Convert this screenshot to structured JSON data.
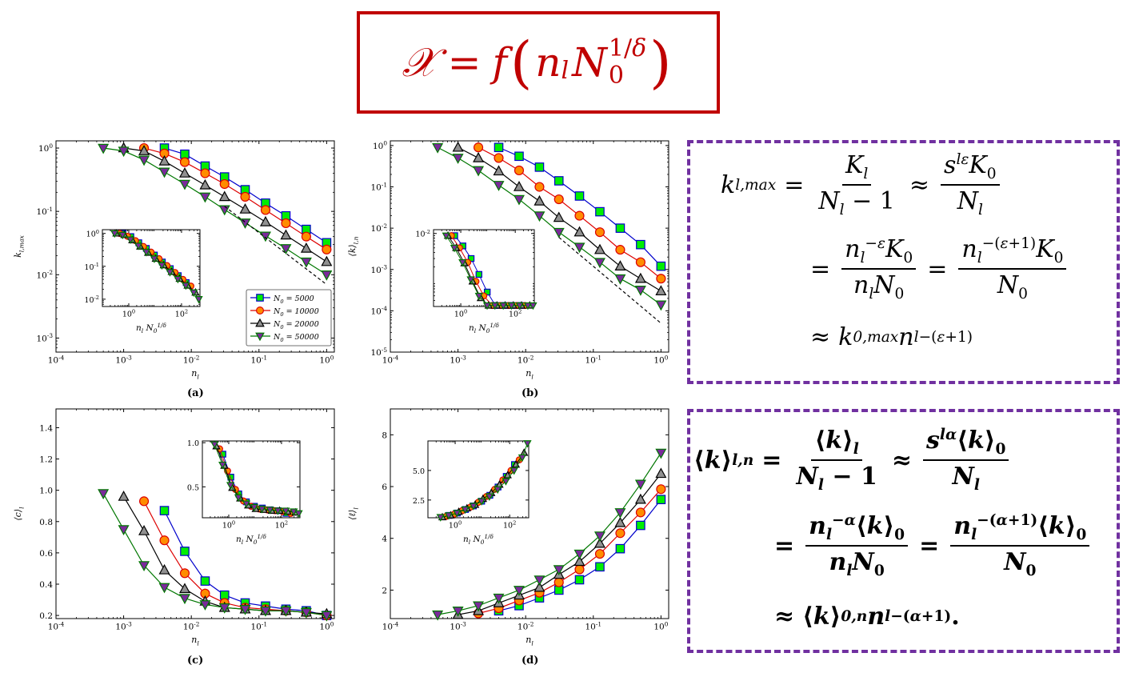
{
  "title_formula": {
    "text": "𝒳 = f (n_l N_0^{1/δ})",
    "color": "#c00000"
  },
  "formula_box1": {
    "lines": [
      "k_{l,max} = K_l / (N_l − 1) ≈ s^{lε} K_0 / N_l",
      "= n_l^{−ε} K_0 / (n_l N_0) = n_l^{−(ε+1)} K_0 / N_0",
      "≈ k_{0,max} n_l^{−(ε+1)}"
    ],
    "border_color": "#7030a0"
  },
  "formula_box2": {
    "lines": [
      "⟨k⟩_{l,n} = ⟨k⟩_l / (N_l − 1) ≈ s^{lα} ⟨k⟩_0 / N_l",
      "= n_l^{−α} ⟨k⟩_0 / (n_l N_0) = n_l^{−(α+1)} ⟨k⟩_0 / N_0",
      "≈ ⟨k⟩_{0,n} n_l^{−(α+1)}."
    ],
    "border_color": "#7030a0"
  },
  "captions": {
    "a": "(a)",
    "b": "(b)",
    "c": "(c)",
    "d": "(d)"
  },
  "legend": [
    {
      "label": "N_0 = 5000",
      "color": "#0000cc",
      "marker": "square",
      "fill": "#00ee00"
    },
    {
      "label": "N_0 = 10000",
      "color": "#dd0000",
      "marker": "circle",
      "fill": "#ff8c00"
    },
    {
      "label": "N_0 = 20000",
      "color": "#000000",
      "marker": "triangle",
      "fill": "#909090"
    },
    {
      "label": "N_0 = 50000",
      "color": "#007700",
      "marker": "tri-down",
      "fill": "#7a2a9a"
    }
  ],
  "chart_data": [
    {
      "id": "a",
      "type": "line",
      "xscale": "log",
      "yscale": "log",
      "xlabel": "n_l",
      "ylabel": "k_{l,max}",
      "xlim": [
        0.0001,
        1.3
      ],
      "ylim": [
        0.0006,
        1.3
      ],
      "xticks": [
        "10^{-4}",
        "10^{-3}",
        "10^{-2}",
        "10^{-1}",
        "10^{0}"
      ],
      "yticks": [
        "10^{-3}",
        "10^{-2}",
        "10^{-1}",
        "10^{0}"
      ],
      "series": [
        {
          "name": "N_0 = 5000",
          "x": [
            0.004,
            0.008,
            0.016,
            0.031,
            0.0625,
            0.125,
            0.25,
            0.5,
            1.0
          ],
          "y": [
            1.0,
            0.8,
            0.52,
            0.35,
            0.22,
            0.135,
            0.085,
            0.052,
            0.032
          ]
        },
        {
          "name": "N_0 = 10000",
          "x": [
            0.002,
            0.004,
            0.008,
            0.016,
            0.031,
            0.0625,
            0.125,
            0.25,
            0.5,
            1.0
          ],
          "y": [
            1.0,
            0.82,
            0.6,
            0.4,
            0.27,
            0.17,
            0.105,
            0.065,
            0.04,
            0.025
          ]
        },
        {
          "name": "N_0 = 20000",
          "x": [
            0.001,
            0.002,
            0.004,
            0.008,
            0.016,
            0.031,
            0.0625,
            0.125,
            0.25,
            0.5,
            1.0
          ],
          "y": [
            1.0,
            0.9,
            0.62,
            0.4,
            0.26,
            0.17,
            0.108,
            0.068,
            0.042,
            0.026,
            0.016
          ]
        },
        {
          "name": "N_0 = 50000",
          "x": [
            0.0005,
            0.001,
            0.002,
            0.004,
            0.008,
            0.016,
            0.031,
            0.0625,
            0.125,
            0.25,
            0.5,
            1.0
          ],
          "y": [
            1.0,
            0.9,
            0.65,
            0.42,
            0.27,
            0.17,
            0.107,
            0.066,
            0.041,
            0.026,
            0.016,
            0.01
          ]
        }
      ],
      "guide_line": {
        "x": [
          0.031,
          1.0
        ],
        "y": [
          0.12,
          0.007
        ]
      },
      "inset": {
        "xlabel": "n_l N_0^{1/δ}",
        "xscale": "log",
        "yscale": "log",
        "xlim": [
          0.1,
          500
        ],
        "ylim": [
          0.006,
          1.3
        ],
        "xticks": [
          "10^{0}",
          "10^{2}"
        ],
        "yticks": [
          "10^{-2}",
          "10^{-1}",
          "10^{0}"
        ]
      }
    },
    {
      "id": "b",
      "type": "line",
      "xscale": "log",
      "yscale": "log",
      "xlabel": "n_l",
      "ylabel": "⟨k⟩_{l,n}",
      "xlim": [
        0.0001,
        1.3
      ],
      "ylim": [
        1e-05,
        1.3
      ],
      "xticks": [
        "10^{-4}",
        "10^{-3}",
        "10^{-2}",
        "10^{-1}",
        "10^{0}"
      ],
      "yticks": [
        "10^{-5}",
        "10^{-4}",
        "10^{-3}",
        "10^{-2}",
        "10^{-1}",
        "10^{0}"
      ],
      "series": [
        {
          "name": "N_0 = 5000",
          "x": [
            0.004,
            0.008,
            0.016,
            0.031,
            0.0625,
            0.125,
            0.25,
            0.5,
            1.0
          ],
          "y": [
            0.9,
            0.55,
            0.3,
            0.14,
            0.06,
            0.025,
            0.01,
            0.004,
            0.0012
          ]
        },
        {
          "name": "N_0 = 10000",
          "x": [
            0.002,
            0.004,
            0.008,
            0.016,
            0.031,
            0.0625,
            0.125,
            0.25,
            0.5,
            1.0
          ],
          "y": [
            0.9,
            0.5,
            0.25,
            0.1,
            0.05,
            0.02,
            0.008,
            0.003,
            0.0015,
            0.0006
          ]
        },
        {
          "name": "N_0 = 20000",
          "x": [
            0.001,
            0.002,
            0.004,
            0.008,
            0.016,
            0.031,
            0.0625,
            0.125,
            0.25,
            0.5,
            1.0
          ],
          "y": [
            0.9,
            0.5,
            0.24,
            0.1,
            0.045,
            0.018,
            0.008,
            0.003,
            0.0012,
            0.0006,
            0.0003
          ]
        },
        {
          "name": "N_0 = 50000",
          "x": [
            0.0005,
            0.001,
            0.002,
            0.004,
            0.008,
            0.016,
            0.031,
            0.0625,
            0.125,
            0.25,
            0.5,
            1.0
          ],
          "y": [
            0.9,
            0.5,
            0.25,
            0.11,
            0.05,
            0.02,
            0.008,
            0.0035,
            0.0015,
            0.0006,
            0.00032,
            0.00014
          ]
        }
      ],
      "guide_line": {
        "x": [
          0.031,
          1.0
        ],
        "y": [
          0.006,
          5e-05
        ]
      },
      "inset": {
        "xlabel": "n_l N_0^{1/δ}",
        "xscale": "log",
        "yscale": "log",
        "xlim": [
          0.1,
          500
        ],
        "ylim": [
          0.0003,
          0.012
        ],
        "xticks": [
          "10^{0}",
          "10^{2}"
        ],
        "yticks": [
          "10^{-2}"
        ]
      }
    },
    {
      "id": "c",
      "type": "line",
      "xscale": "log",
      "yscale": "linear",
      "xlabel": "n_l",
      "ylabel": "⟨c⟩_l",
      "xlim": [
        0.0001,
        1.3
      ],
      "ylim": [
        0.18,
        1.52
      ],
      "xticks": [
        "10^{-4}",
        "10^{-3}",
        "10^{-2}",
        "10^{-1}",
        "10^{0}"
      ],
      "yticks": [
        "0.2",
        "0.4",
        "0.6",
        "0.8",
        "1.0",
        "1.2",
        "1.4"
      ],
      "series": [
        {
          "name": "N_0 = 5000",
          "x": [
            0.004,
            0.008,
            0.016,
            0.031,
            0.0625,
            0.125,
            0.25,
            0.5,
            1.0
          ],
          "y": [
            0.87,
            0.61,
            0.42,
            0.33,
            0.28,
            0.26,
            0.24,
            0.23,
            0.2
          ]
        },
        {
          "name": "N_0 = 10000",
          "x": [
            0.002,
            0.004,
            0.008,
            0.016,
            0.031,
            0.0625,
            0.125,
            0.25,
            0.5,
            1.0
          ],
          "y": [
            0.93,
            0.68,
            0.47,
            0.34,
            0.28,
            0.25,
            0.24,
            0.23,
            0.22,
            0.2
          ]
        },
        {
          "name": "N_0 = 20000",
          "x": [
            0.001,
            0.002,
            0.004,
            0.008,
            0.016,
            0.031,
            0.0625,
            0.125,
            0.25,
            0.5,
            1.0
          ],
          "y": [
            0.96,
            0.74,
            0.49,
            0.37,
            0.29,
            0.25,
            0.24,
            0.23,
            0.23,
            0.22,
            0.21
          ]
        },
        {
          "name": "N_0 = 50000",
          "x": [
            0.0005,
            0.001,
            0.002,
            0.004,
            0.008,
            0.016,
            0.031,
            0.0625,
            0.125,
            0.25,
            0.5,
            1.0
          ],
          "y": [
            0.98,
            0.75,
            0.52,
            0.38,
            0.31,
            0.27,
            0.25,
            0.24,
            0.23,
            0.23,
            0.22,
            0.2
          ]
        }
      ],
      "inset": {
        "xlabel": "n_l N_0^{1/δ}",
        "xscale": "log",
        "yscale": "linear",
        "xlim": [
          0.1,
          500
        ],
        "ylim": [
          0.15,
          1.02
        ],
        "xticks": [
          "10^{0}",
          "10^{2}"
        ],
        "yticks": [
          "0.5",
          "1.0"
        ]
      }
    },
    {
      "id": "d",
      "type": "line",
      "xscale": "log",
      "yscale": "linear",
      "xlabel": "n_l",
      "ylabel": "⟨ℓ⟩_l",
      "xlim": [
        0.0001,
        1.3
      ],
      "ylim": [
        0.9,
        9.0
      ],
      "xticks": [
        "10^{-4}",
        "10^{-3}",
        "10^{-2}",
        "10^{-1}",
        "10^{0}"
      ],
      "yticks": [
        "2",
        "4",
        "6",
        "8"
      ],
      "series": [
        {
          "name": "N_0 = 5000",
          "x": [
            0.004,
            0.008,
            0.016,
            0.031,
            0.0625,
            0.125,
            0.25,
            0.5,
            1.0
          ],
          "y": [
            1.2,
            1.4,
            1.7,
            2.0,
            2.4,
            2.9,
            3.6,
            4.5,
            5.5
          ]
        },
        {
          "name": "N_0 = 10000",
          "x": [
            0.002,
            0.004,
            0.008,
            0.016,
            0.031,
            0.0625,
            0.125,
            0.25,
            0.5,
            1.0
          ],
          "y": [
            1.1,
            1.3,
            1.6,
            1.9,
            2.3,
            2.8,
            3.4,
            4.2,
            5.0,
            5.9
          ]
        },
        {
          "name": "N_0 = 20000",
          "x": [
            0.001,
            0.002,
            0.004,
            0.008,
            0.016,
            0.031,
            0.0625,
            0.125,
            0.25,
            0.5,
            1.0
          ],
          "y": [
            1.05,
            1.2,
            1.5,
            1.8,
            2.1,
            2.6,
            3.1,
            3.8,
            4.6,
            5.5,
            6.5
          ]
        },
        {
          "name": "N_0 = 50000",
          "x": [
            0.0005,
            0.001,
            0.002,
            0.004,
            0.008,
            0.016,
            0.031,
            0.0625,
            0.125,
            0.25,
            0.5,
            1.0
          ],
          "y": [
            1.05,
            1.2,
            1.4,
            1.7,
            2.0,
            2.4,
            2.8,
            3.4,
            4.1,
            5.0,
            6.1,
            7.3
          ]
        }
      ],
      "inset": {
        "xlabel": "n_l N_0^{1/δ}",
        "xscale": "log",
        "yscale": "linear",
        "xlim": [
          0.1,
          500
        ],
        "ylim": [
          1.0,
          7.5
        ],
        "xticks": [
          "10^{0}",
          "10^{2}"
        ],
        "yticks": [
          "2.5",
          "5.0"
        ]
      }
    }
  ]
}
